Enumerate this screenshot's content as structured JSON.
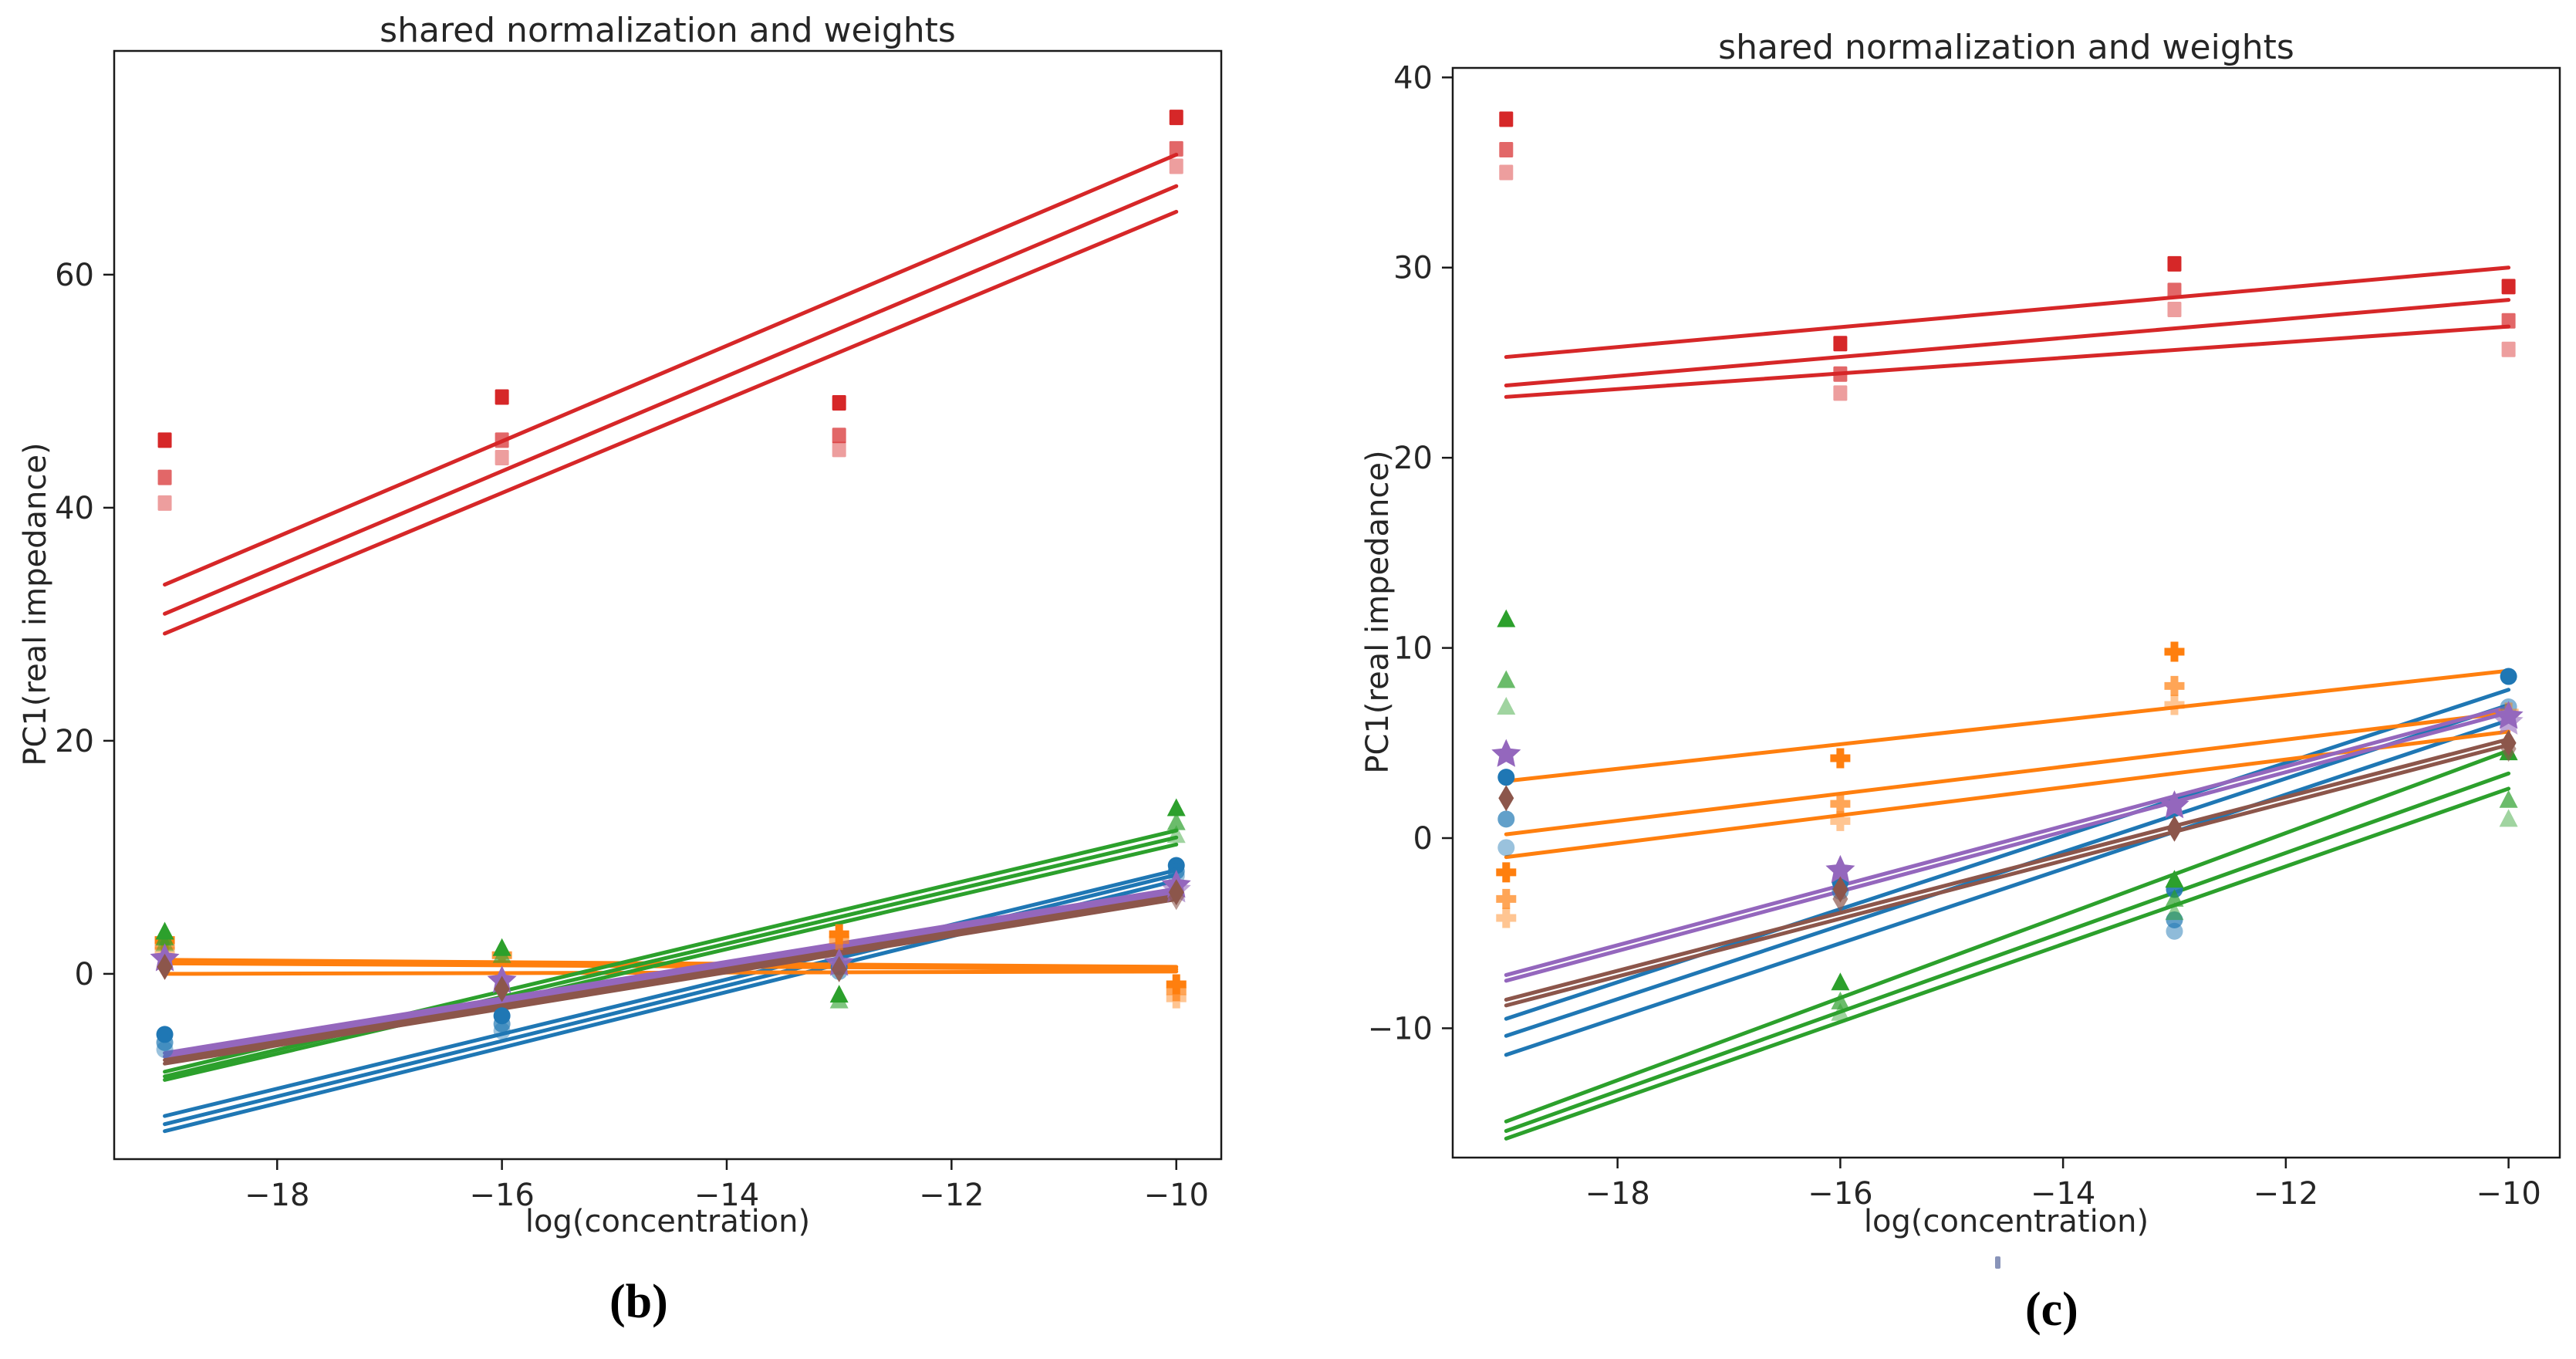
{
  "chart_data": [
    {
      "id": "b",
      "type": "scatter",
      "title": "shared normalization and weights",
      "xlabel": "log(concentration)",
      "ylabel": "PC1(real impedance)",
      "caption": "(b)",
      "xlim": [
        -19.45,
        -9.6
      ],
      "ylim": [
        -15.9,
        79.2
      ],
      "xticks": [
        -18,
        -16,
        -14,
        -12,
        -10
      ],
      "yticks": [
        0,
        20,
        40,
        60
      ],
      "grid": false,
      "legend": "none",
      "line_span": [
        -19,
        -10
      ],
      "series": [
        {
          "name": "blue-circles",
          "marker": "circle",
          "color": "#1f77b4",
          "points": [
            [
              -19,
              -5.2,
              1
            ],
            [
              -19,
              -5.9,
              0.7
            ],
            [
              -19,
              -6.5,
              0.45
            ],
            [
              -16,
              -3.6,
              1
            ],
            [
              -16,
              -4.3,
              0.7
            ],
            [
              -16,
              -4.9,
              0.45
            ],
            [
              -13,
              0.6,
              0.9
            ],
            [
              -13,
              0.2,
              0.55
            ],
            [
              -10,
              9.3,
              1
            ],
            [
              -10,
              8.8,
              0.7
            ],
            [
              -10,
              8.4,
              0.45
            ]
          ],
          "lines": [
            [
              -12.2,
              8.9
            ],
            [
              -12.9,
              8.5
            ],
            [
              -13.5,
              8.0
            ]
          ]
        },
        {
          "name": "orange-pluses",
          "marker": "plus",
          "color": "#ff7f0e",
          "points": [
            [
              -19,
              2.9,
              1
            ],
            [
              -19,
              2.4,
              0.7
            ],
            [
              -19,
              2.0,
              0.45
            ],
            [
              -16,
              1.6,
              0.8
            ],
            [
              -13,
              3.4,
              1
            ],
            [
              -13,
              2.9,
              0.6
            ],
            [
              -10,
              -0.9,
              1
            ],
            [
              -10,
              -1.5,
              0.7
            ],
            [
              -10,
              -2.1,
              0.45
            ]
          ],
          "lines": [
            [
              1.2,
              0.6
            ],
            [
              0.9,
              0.4
            ],
            [
              0.0,
              0.2
            ]
          ]
        },
        {
          "name": "green-triangles",
          "marker": "triangle",
          "color": "#2ca02c",
          "points": [
            [
              -19,
              3.6,
              1
            ],
            [
              -19,
              3.1,
              0.7
            ],
            [
              -19,
              2.6,
              0.45
            ],
            [
              -16,
              2.2,
              1
            ],
            [
              -16,
              1.6,
              0.6
            ],
            [
              -13,
              -1.8,
              1
            ],
            [
              -13,
              -2.3,
              0.6
            ],
            [
              -10,
              14.2,
              1
            ],
            [
              -10,
              13.0,
              0.7
            ],
            [
              -10,
              11.9,
              0.45
            ]
          ],
          "lines": [
            [
              -8.4,
              12.3
            ],
            [
              -8.8,
              11.7
            ],
            [
              -9.1,
              11.1
            ]
          ]
        },
        {
          "name": "red-squares",
          "marker": "square",
          "color": "#d62728",
          "points": [
            [
              -19,
              45.8,
              1
            ],
            [
              -19,
              42.6,
              0.7
            ],
            [
              -19,
              40.4,
              0.45
            ],
            [
              -16,
              49.5,
              1
            ],
            [
              -16,
              45.8,
              0.7
            ],
            [
              -16,
              44.3,
              0.45
            ],
            [
              -13,
              49.0,
              1
            ],
            [
              -13,
              46.2,
              0.7
            ],
            [
              -13,
              45.0,
              0.45
            ],
            [
              -10,
              73.5,
              1
            ],
            [
              -10,
              70.8,
              0.7
            ],
            [
              -10,
              69.3,
              0.45
            ]
          ],
          "lines": [
            [
              33.4,
              70.3
            ],
            [
              30.9,
              67.6
            ],
            [
              29.2,
              65.4
            ]
          ]
        },
        {
          "name": "purple-stars",
          "marker": "star",
          "color": "#9467bd",
          "points": [
            [
              -19,
              1.3,
              1
            ],
            [
              -16,
              -0.6,
              1
            ],
            [
              -13,
              0.9,
              0.9
            ],
            [
              -10,
              7.6,
              1
            ],
            [
              -10,
              7.2,
              0.6
            ]
          ],
          "lines": [
            [
              -6.8,
              7.3
            ],
            [
              -7.1,
              7.0
            ]
          ]
        },
        {
          "name": "brown-diamonds",
          "marker": "diamond",
          "color": "#8c564b",
          "points": [
            [
              -19,
              0.6,
              1
            ],
            [
              -16,
              -1.3,
              1
            ],
            [
              -13,
              0.4,
              0.9
            ],
            [
              -10,
              7.0,
              1
            ],
            [
              -10,
              6.6,
              0.6
            ]
          ],
          "lines": [
            [
              -7.4,
              6.7
            ],
            [
              -7.7,
              6.4
            ]
          ]
        }
      ]
    },
    {
      "id": "c",
      "type": "scatter",
      "title": "shared normalization and weights",
      "xlabel": "log(concentration)",
      "ylabel": "PC1(real impedance)",
      "caption": "(c)",
      "xlim": [
        -19.48,
        -9.54
      ],
      "ylim": [
        -16.8,
        40.5
      ],
      "xticks": [
        -18,
        -16,
        -14,
        -12,
        -10
      ],
      "yticks": [
        -10,
        0,
        10,
        20,
        30,
        40
      ],
      "grid": false,
      "legend": "none",
      "line_span": [
        -19,
        -10
      ],
      "series": [
        {
          "name": "blue-circles",
          "marker": "circle",
          "color": "#1f77b4",
          "points": [
            [
              -19,
              3.2,
              1
            ],
            [
              -19,
              1.0,
              0.7
            ],
            [
              -19,
              -0.5,
              0.45
            ],
            [
              -16,
              -2.3,
              1
            ],
            [
              -16,
              -2.8,
              0.6
            ],
            [
              -13,
              -2.7,
              0.9
            ],
            [
              -13,
              -4.3,
              0.7
            ],
            [
              -13,
              -4.9,
              0.5
            ],
            [
              -10,
              8.5,
              1
            ],
            [
              -10,
              6.9,
              0.55
            ]
          ],
          "lines": [
            [
              -9.5,
              7.8
            ],
            [
              -10.4,
              7.0
            ],
            [
              -11.4,
              6.2
            ]
          ]
        },
        {
          "name": "orange-pluses",
          "marker": "plus",
          "color": "#ff7f0e",
          "points": [
            [
              -19,
              -1.8,
              1
            ],
            [
              -19,
              -3.2,
              0.7
            ],
            [
              -19,
              -4.2,
              0.45
            ],
            [
              -16,
              4.2,
              1
            ],
            [
              -16,
              1.8,
              0.7
            ],
            [
              -16,
              0.9,
              0.45
            ],
            [
              -13,
              9.8,
              1
            ],
            [
              -13,
              8.0,
              0.7
            ],
            [
              -13,
              7.0,
              0.45
            ],
            [
              -10,
              6.6,
              0.5
            ]
          ],
          "lines": [
            [
              3.0,
              8.8
            ],
            [
              0.2,
              6.6
            ],
            [
              -1.0,
              5.6
            ]
          ]
        },
        {
          "name": "green-triangles",
          "marker": "triangle",
          "color": "#2ca02c",
          "points": [
            [
              -19,
              11.5,
              1
            ],
            [
              -19,
              8.3,
              0.7
            ],
            [
              -19,
              6.9,
              0.45
            ],
            [
              -16,
              -7.6,
              1
            ],
            [
              -16,
              -8.6,
              0.7
            ],
            [
              -16,
              -9.2,
              0.45
            ],
            [
              -13,
              -2.2,
              1
            ],
            [
              -13,
              -3.2,
              0.7
            ],
            [
              -13,
              -3.9,
              0.5
            ],
            [
              -10,
              4.5,
              1
            ],
            [
              -10,
              2.0,
              0.7
            ],
            [
              -10,
              1.0,
              0.45
            ]
          ],
          "lines": [
            [
              -14.9,
              4.6
            ],
            [
              -15.4,
              3.4
            ],
            [
              -15.8,
              2.6
            ]
          ]
        },
        {
          "name": "red-squares",
          "marker": "square",
          "color": "#d62728",
          "points": [
            [
              -19,
              37.8,
              1
            ],
            [
              -19,
              36.2,
              0.7
            ],
            [
              -19,
              35.0,
              0.45
            ],
            [
              -16,
              26.0,
              1
            ],
            [
              -16,
              24.4,
              0.7
            ],
            [
              -16,
              23.4,
              0.45
            ],
            [
              -13,
              30.2,
              1
            ],
            [
              -13,
              28.8,
              0.7
            ],
            [
              -13,
              27.8,
              0.45
            ],
            [
              -10,
              29.0,
              1
            ],
            [
              -10,
              27.2,
              0.7
            ],
            [
              -10,
              25.7,
              0.45
            ]
          ],
          "lines": [
            [
              25.3,
              30.0
            ],
            [
              23.8,
              28.3
            ],
            [
              23.2,
              26.9
            ]
          ]
        },
        {
          "name": "purple-stars",
          "marker": "star",
          "color": "#9467bd",
          "points": [
            [
              -19,
              4.4,
              1
            ],
            [
              -16,
              -1.7,
              1
            ],
            [
              -13,
              1.7,
              1
            ],
            [
              -10,
              6.4,
              1
            ],
            [
              -10,
              6.1,
              0.6
            ]
          ],
          "lines": [
            [
              -7.2,
              6.9
            ],
            [
              -7.5,
              6.6
            ]
          ]
        },
        {
          "name": "brown-diamonds",
          "marker": "diamond",
          "color": "#8c564b",
          "points": [
            [
              -19,
              2.1,
              1
            ],
            [
              -16,
              -2.7,
              1
            ],
            [
              -16,
              -3.2,
              0.7
            ],
            [
              -13,
              0.5,
              1
            ],
            [
              -10,
              5.0,
              1
            ],
            [
              -10,
              4.7,
              0.6
            ]
          ],
          "lines": [
            [
              -8.5,
              5.2
            ],
            [
              -8.8,
              4.9
            ]
          ]
        }
      ]
    }
  ]
}
